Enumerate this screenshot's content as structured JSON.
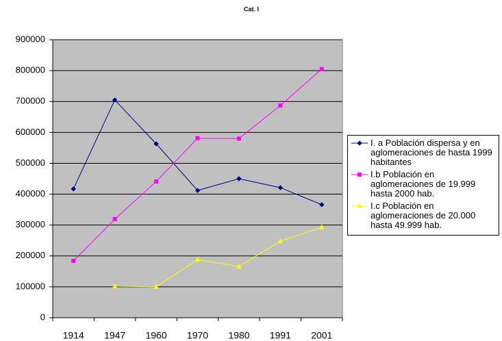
{
  "chart_data": {
    "type": "line",
    "title": "Cat. I",
    "categories": [
      "1914",
      "1947",
      "1960",
      "1970",
      "1980",
      "1991",
      "2001"
    ],
    "series": [
      {
        "name": "I. a Población dispersa y en aglomeraciones de hasta 1999 habitantes",
        "color": "#000080",
        "marker": "diamond",
        "values": [
          417000,
          705000,
          563000,
          412000,
          450000,
          421000,
          366000
        ]
      },
      {
        "name": "I.b Población en aglomeraciones de 19.999 hasta 2000 hab.",
        "color": "#ff00ff",
        "marker": "square",
        "values": [
          184000,
          319000,
          441000,
          581000,
          580000,
          687000,
          805000
        ]
      },
      {
        "name": "I.c Población en aglomeraciones de 20.000 hasta 49.999 hab.",
        "color": "#ffff00",
        "marker": "triangle",
        "values": [
          null,
          102000,
          100000,
          188000,
          166000,
          248000,
          293000
        ]
      }
    ],
    "ylim": [
      0,
      900000
    ],
    "yticks": [
      0,
      100000,
      200000,
      300000,
      400000,
      500000,
      600000,
      700000,
      800000,
      900000
    ],
    "grid": true,
    "plot_background": "#c0c0c0",
    "legend": "right"
  }
}
